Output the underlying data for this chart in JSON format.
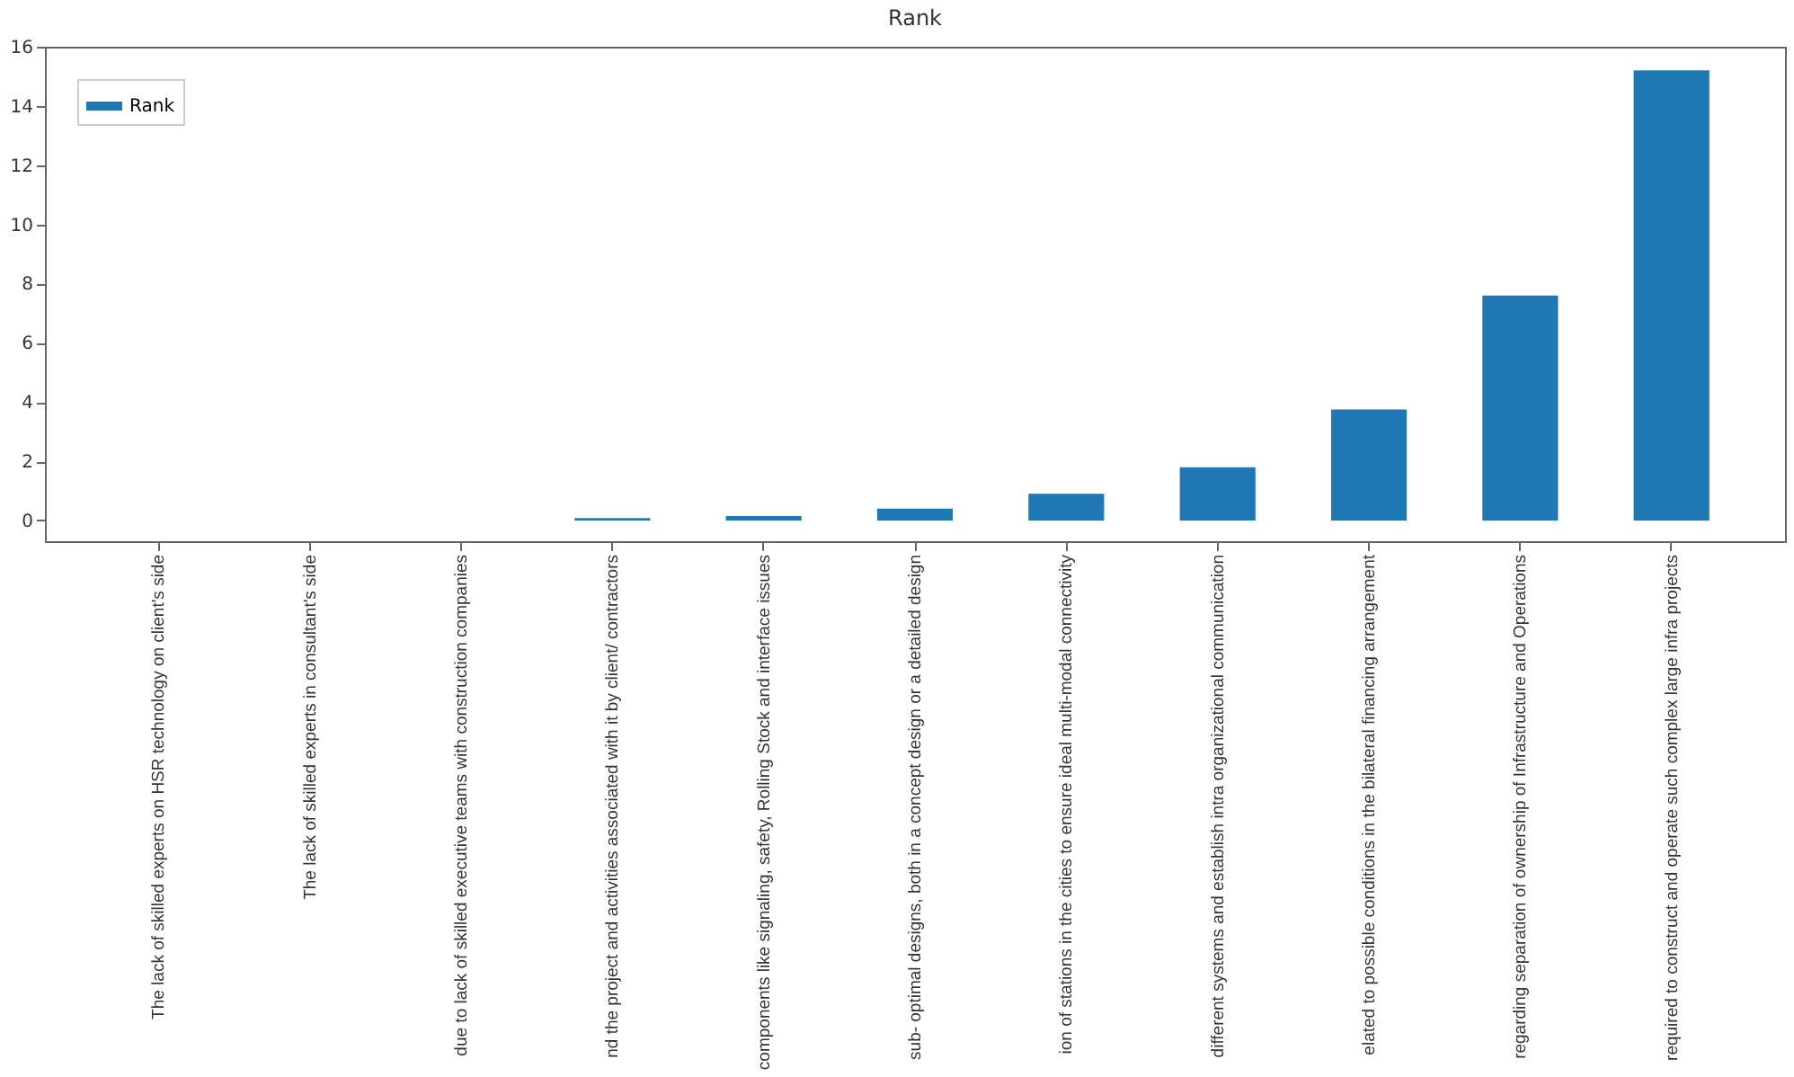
{
  "chart_data": {
    "type": "bar",
    "title": "Rank",
    "categories": [
      "The lack of skilled experts on HSR technology on client's side",
      "The lack of skilled experts in consultant's side",
      "due to lack of skilled executive teams with construction companies",
      "nd the project and activities associated with it by client/ contractors",
      "components like signaling, safety, Rolling Stock and interface issues",
      "sub- optimal designs, both in a concept design or a detailed design",
      "ion of stations in the cities to ensure ideal multi-modal connectivity",
      "different systems and establish intra organizational communication",
      "elated to possible conditions in the bilateral financing arrangement",
      "regarding separation of ownership of Infrastructure and Operations",
      "required to construct and operate such complex large infra projects"
    ],
    "series": [
      {
        "name": "Rank",
        "color": "#1f77b4",
        "values": [
          0,
          0,
          0,
          0.08,
          0.15,
          0.4,
          0.9,
          1.8,
          3.75,
          7.6,
          15.2
        ]
      }
    ],
    "ylim": [
      -0.7,
      16
    ],
    "yticks": [
      0,
      2,
      4,
      6,
      8,
      10,
      12,
      14,
      16
    ],
    "grid": false,
    "legend": "top left"
  }
}
